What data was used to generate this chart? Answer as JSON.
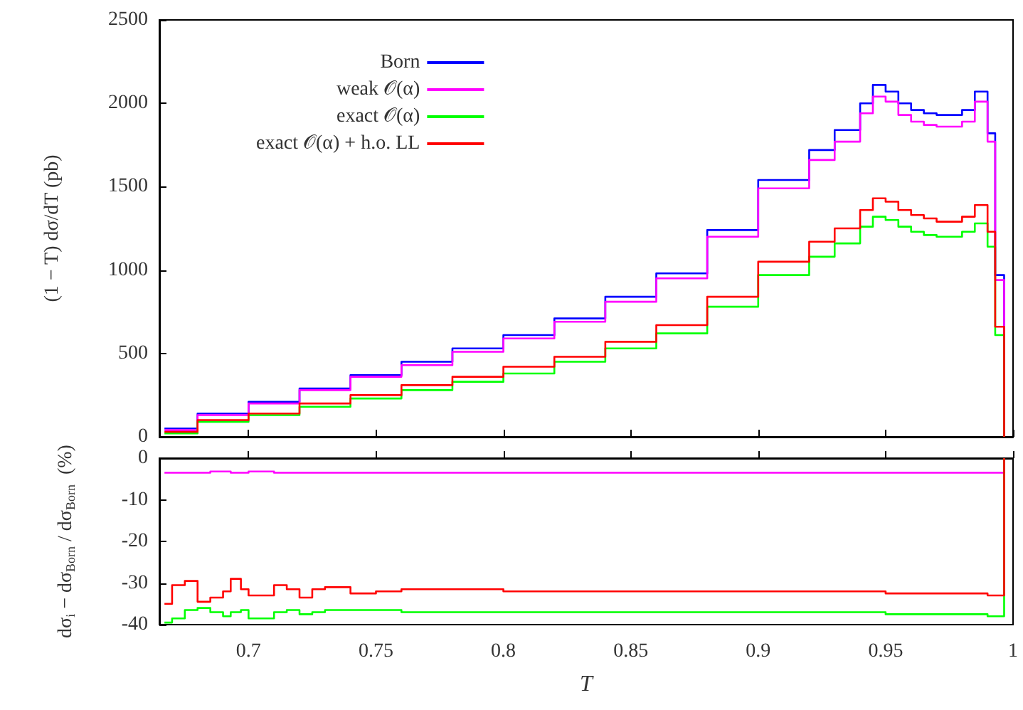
{
  "chart_data": [
    {
      "type": "step",
      "ylabel": "(1 − T) dσ/dT (pb)",
      "xlim": [
        0.665,
        1.0
      ],
      "ylim": [
        0,
        2500
      ],
      "xticks": [
        0.7,
        0.75,
        0.8,
        0.85,
        0.9,
        0.95,
        1
      ],
      "yticks": [
        0,
        500,
        1000,
        1500,
        2000,
        2500
      ],
      "tick_labels": "y",
      "legend": "top left",
      "marker": "none",
      "x": [
        0.667,
        0.68,
        0.7,
        0.72,
        0.74,
        0.76,
        0.78,
        0.8,
        0.82,
        0.84,
        0.86,
        0.88,
        0.9,
        0.92,
        0.93,
        0.94,
        0.945,
        0.95,
        0.955,
        0.96,
        0.965,
        0.97,
        0.975,
        0.98,
        0.985,
        0.99,
        0.993,
        0.9965
      ],
      "series": [
        {
          "name": "Born",
          "color": "#0000ff",
          "values": [
            50,
            140,
            210,
            290,
            370,
            450,
            530,
            610,
            710,
            840,
            980,
            1240,
            1540,
            1720,
            1840,
            2000,
            2110,
            2070,
            2000,
            1960,
            1940,
            1930,
            1930,
            1960,
            2070,
            1820,
            970,
            0
          ]
        },
        {
          "name": "weak 𝒪(α)",
          "color": "#ff00ff",
          "values": [
            40,
            130,
            200,
            280,
            360,
            430,
            510,
            590,
            690,
            810,
            950,
            1200,
            1490,
            1660,
            1770,
            1940,
            2040,
            2010,
            1930,
            1890,
            1870,
            1860,
            1860,
            1890,
            2010,
            1770,
            940,
            0
          ]
        },
        {
          "name": "exact 𝒪(α)",
          "color": "#00ff00",
          "values": [
            20,
            90,
            130,
            180,
            230,
            280,
            330,
            380,
            450,
            530,
            620,
            780,
            970,
            1080,
            1160,
            1260,
            1320,
            1300,
            1260,
            1230,
            1210,
            1200,
            1200,
            1230,
            1280,
            1140,
            610,
            0
          ]
        },
        {
          "name": "exact 𝒪(α) + h.o. LL",
          "color": "#ff0000",
          "values": [
            30,
            100,
            140,
            200,
            250,
            310,
            360,
            420,
            480,
            570,
            670,
            840,
            1050,
            1170,
            1250,
            1360,
            1430,
            1410,
            1360,
            1330,
            1310,
            1290,
            1290,
            1320,
            1390,
            1230,
            660,
            0
          ]
        }
      ]
    },
    {
      "type": "step",
      "xlabel": "T",
      "ylabel": "dσ$_{i}$ − dσ$_{Born}$ / dσ$_{Born}$  (%)",
      "xlim": [
        0.665,
        1.0
      ],
      "ylim": [
        -40,
        0
      ],
      "xticks": [
        0.7,
        0.75,
        0.8,
        0.85,
        0.9,
        0.95,
        1
      ],
      "yticks": [
        0,
        -10,
        -20,
        -30,
        -40
      ],
      "marker": "none",
      "x": [
        0.667,
        0.67,
        0.675,
        0.68,
        0.685,
        0.69,
        0.693,
        0.697,
        0.7,
        0.71,
        0.715,
        0.72,
        0.725,
        0.73,
        0.74,
        0.75,
        0.76,
        0.78,
        0.8,
        0.85,
        0.9,
        0.95,
        0.99,
        0.9965
      ],
      "series": [
        {
          "color": "#ff00ff",
          "values": [
            -3.5,
            -3.5,
            -3.5,
            -3.5,
            -3.2,
            -3.2,
            -3.5,
            -3.5,
            -3.2,
            -3.5,
            -3.5,
            -3.5,
            -3.5,
            -3.5,
            -3.5,
            -3.5,
            -3.5,
            -3.5,
            -3.5,
            -3.5,
            -3.5,
            -3.5,
            -3.5,
            0
          ]
        },
        {
          "color": "#00ff00",
          "values": [
            -39.5,
            -38.5,
            -36.5,
            -36,
            -37,
            -38,
            -37,
            -36.5,
            -38.5,
            -37,
            -36.5,
            -37.5,
            -37,
            -36.5,
            -36.5,
            -36.5,
            -37,
            -37,
            -37,
            -37,
            -37,
            -37.5,
            -38,
            0
          ]
        },
        {
          "color": "#ff0000",
          "values": [
            -35,
            -30.5,
            -29.5,
            -34.5,
            -33.5,
            -32,
            -29,
            -31.5,
            -33,
            -30.5,
            -31.5,
            -33.5,
            -31.5,
            -31,
            -32.5,
            -32,
            -31.5,
            -31.5,
            -32,
            -32,
            -32,
            -32.5,
            -33,
            0
          ]
        }
      ]
    }
  ]
}
